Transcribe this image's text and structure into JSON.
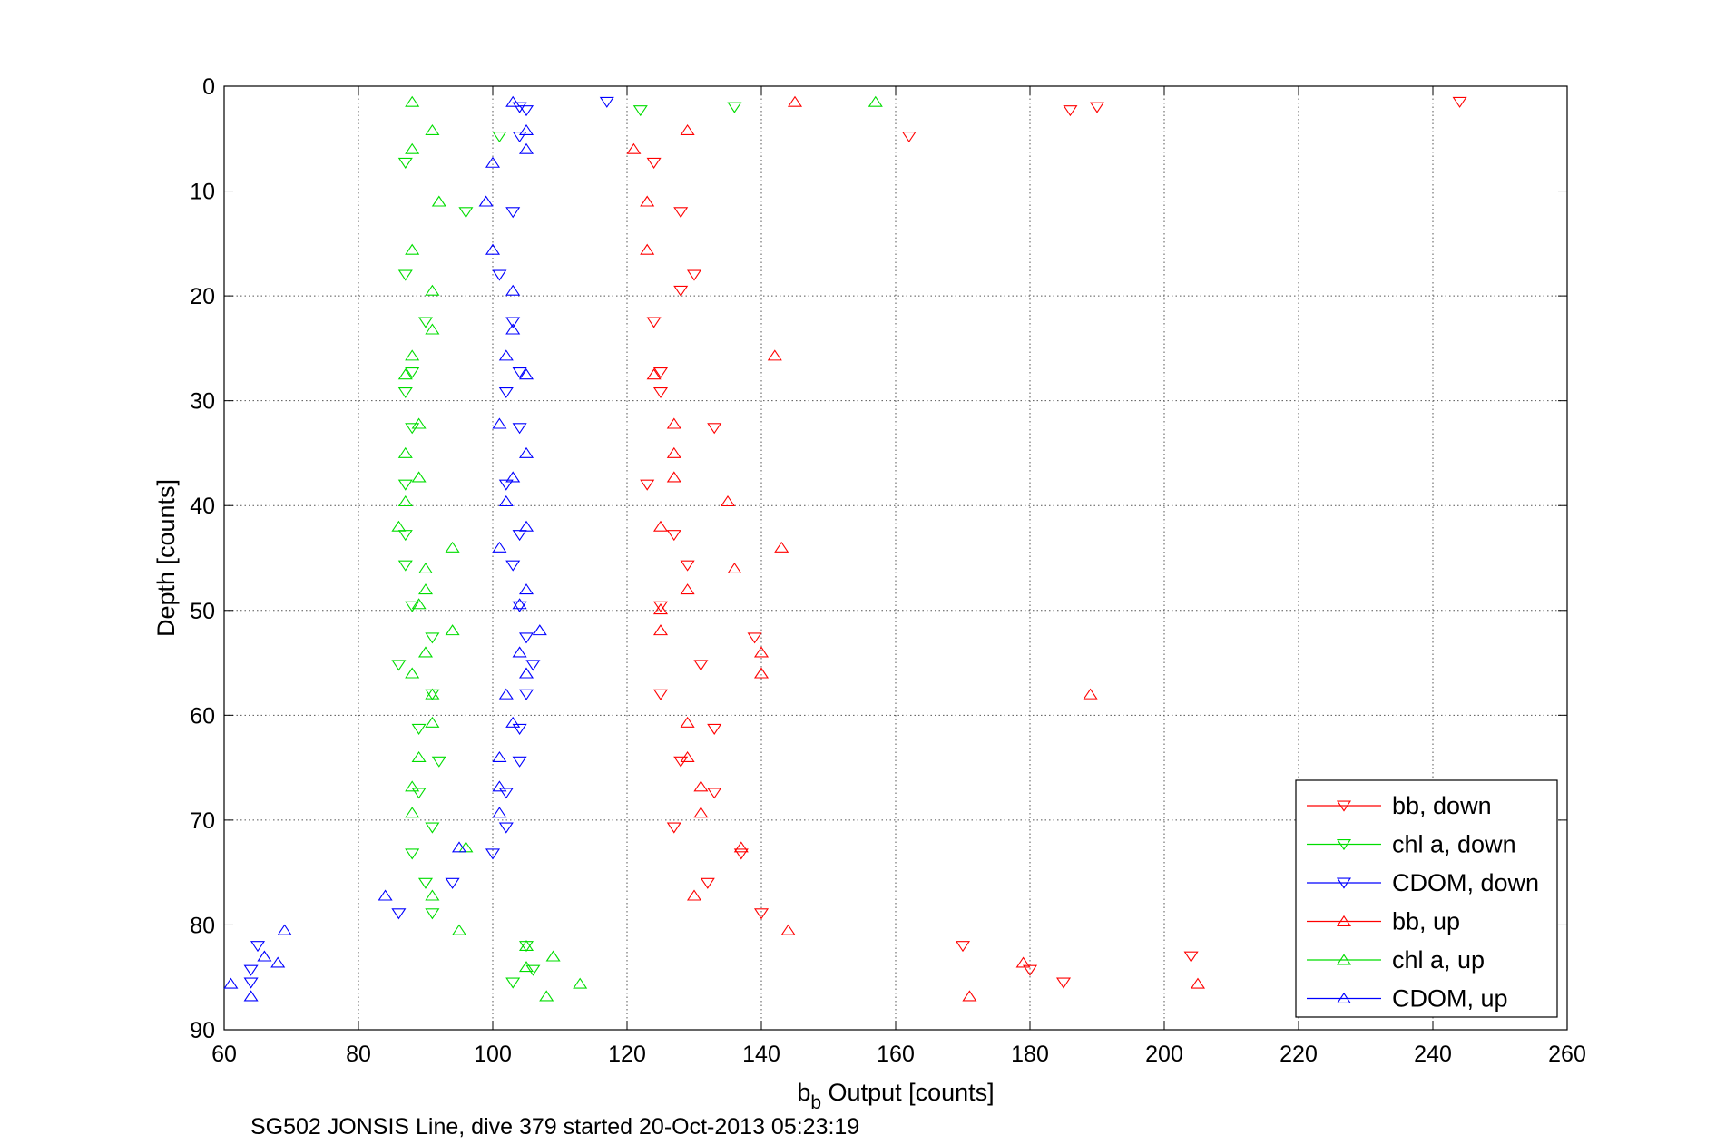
{
  "chart_data": {
    "type": "scatter",
    "xlabel_main": "b",
    "xlabel_sub": "b",
    "xlabel_rest": " Output [counts]",
    "ylabel": "Depth [counts]",
    "caption": "SG502 JONSIS Line, dive 379 started 20-Oct-2013 05:23:19",
    "xlim": [
      60,
      260
    ],
    "ylim": [
      0,
      90
    ],
    "y_reversed": true,
    "x_ticks": [
      60,
      80,
      100,
      120,
      140,
      160,
      180,
      200,
      220,
      240,
      260
    ],
    "y_ticks": [
      0,
      10,
      20,
      30,
      40,
      50,
      60,
      70,
      80,
      90
    ],
    "grid": true,
    "legend_position": "bottom-right",
    "series": [
      {
        "name": "bb, down",
        "color": "#ff0000",
        "marker": "triangle-down",
        "points": [
          [
            244,
            1.5
          ],
          [
            190,
            2
          ],
          [
            186,
            2.3
          ],
          [
            162,
            4.8
          ],
          [
            124,
            7.3
          ],
          [
            128,
            12
          ],
          [
            130,
            18
          ],
          [
            128,
            19.5
          ],
          [
            124,
            22.5
          ],
          [
            125,
            27.3
          ],
          [
            125,
            29.2
          ],
          [
            133,
            32.6
          ],
          [
            123,
            38
          ],
          [
            127,
            42.8
          ],
          [
            129,
            45.7
          ],
          [
            125,
            49.6
          ],
          [
            139,
            52.6
          ],
          [
            131,
            55.2
          ],
          [
            125,
            58
          ],
          [
            133,
            61.3
          ],
          [
            128,
            64.4
          ],
          [
            133,
            67.4
          ],
          [
            127,
            70.7
          ],
          [
            137,
            73.2
          ],
          [
            132,
            76
          ],
          [
            140,
            78.9
          ],
          [
            170,
            82
          ],
          [
            180,
            84.3
          ],
          [
            185,
            85.5
          ],
          [
            204,
            83
          ]
        ]
      },
      {
        "name": "chl a, down",
        "color": "#00dd00",
        "marker": "triangle-down",
        "points": [
          [
            136,
            2
          ],
          [
            122,
            2.3
          ],
          [
            101,
            4.8
          ],
          [
            87,
            7.3
          ],
          [
            96,
            12
          ],
          [
            87,
            18
          ],
          [
            90,
            22.5
          ],
          [
            88,
            27.3
          ],
          [
            87,
            29.2
          ],
          [
            88,
            32.6
          ],
          [
            87,
            38
          ],
          [
            87,
            42.8
          ],
          [
            87,
            45.7
          ],
          [
            88,
            49.6
          ],
          [
            91,
            52.6
          ],
          [
            86,
            55.2
          ],
          [
            91,
            58
          ],
          [
            89,
            61.3
          ],
          [
            92,
            64.4
          ],
          [
            89,
            67.4
          ],
          [
            91,
            70.7
          ],
          [
            88,
            73.2
          ],
          [
            90,
            76
          ],
          [
            91,
            78.9
          ],
          [
            105,
            82
          ],
          [
            106,
            84.3
          ],
          [
            103,
            85.5
          ]
        ]
      },
      {
        "name": "CDOM, down",
        "color": "#0000ff",
        "marker": "triangle-down",
        "points": [
          [
            117,
            1.5
          ],
          [
            104,
            2
          ],
          [
            105,
            2.3
          ],
          [
            104,
            4.8
          ],
          [
            103,
            12
          ],
          [
            101,
            18
          ],
          [
            103,
            22.5
          ],
          [
            104,
            27.3
          ],
          [
            102,
            29.2
          ],
          [
            104,
            32.6
          ],
          [
            102,
            38
          ],
          [
            104,
            42.8
          ],
          [
            103,
            45.7
          ],
          [
            104,
            49.6
          ],
          [
            105,
            52.6
          ],
          [
            106,
            55.2
          ],
          [
            105,
            58
          ],
          [
            104,
            61.3
          ],
          [
            104,
            64.4
          ],
          [
            102,
            67.4
          ],
          [
            102,
            70.7
          ],
          [
            100,
            73.2
          ],
          [
            94,
            76
          ],
          [
            86,
            78.9
          ],
          [
            65,
            82
          ],
          [
            64,
            84.3
          ],
          [
            64,
            85.5
          ]
        ]
      },
      {
        "name": "bb, up",
        "color": "#ff0000",
        "marker": "triangle-up",
        "points": [
          [
            145,
            1.5
          ],
          [
            129,
            4.2
          ],
          [
            121,
            6
          ],
          [
            123,
            11
          ],
          [
            123,
            15.6
          ],
          [
            142,
            25.7
          ],
          [
            124,
            27.5
          ],
          [
            127,
            32.2
          ],
          [
            127,
            35
          ],
          [
            127,
            37.3
          ],
          [
            135,
            39.6
          ],
          [
            125,
            42
          ],
          [
            143,
            44
          ],
          [
            136,
            46
          ],
          [
            129,
            48
          ],
          [
            125,
            49.9
          ],
          [
            125,
            51.9
          ],
          [
            140,
            54
          ],
          [
            140,
            56
          ],
          [
            189,
            58
          ],
          [
            129,
            60.7
          ],
          [
            129,
            64
          ],
          [
            131,
            66.8
          ],
          [
            131,
            69.3
          ],
          [
            137,
            72.6
          ],
          [
            130,
            77.2
          ],
          [
            144,
            80.5
          ],
          [
            179,
            83.6
          ],
          [
            205,
            85.6
          ],
          [
            171,
            86.8
          ]
        ]
      },
      {
        "name": "chl a, up",
        "color": "#00dd00",
        "marker": "triangle-up",
        "points": [
          [
            88,
            1.5
          ],
          [
            157,
            1.5
          ],
          [
            91,
            4.2
          ],
          [
            88,
            6
          ],
          [
            92,
            11
          ],
          [
            88,
            15.6
          ],
          [
            91,
            19.5
          ],
          [
            91,
            23.2
          ],
          [
            88,
            25.7
          ],
          [
            87,
            27.5
          ],
          [
            89,
            32.2
          ],
          [
            87,
            35
          ],
          [
            89,
            37.3
          ],
          [
            87,
            39.6
          ],
          [
            86,
            42
          ],
          [
            94,
            44
          ],
          [
            90,
            46
          ],
          [
            90,
            48
          ],
          [
            89,
            49.4
          ],
          [
            94,
            51.9
          ],
          [
            90,
            54
          ],
          [
            88,
            56
          ],
          [
            91,
            58
          ],
          [
            91,
            60.7
          ],
          [
            89,
            64
          ],
          [
            88,
            66.8
          ],
          [
            88,
            69.3
          ],
          [
            96,
            72.6
          ],
          [
            91,
            77.2
          ],
          [
            95,
            80.5
          ],
          [
            105,
            82
          ],
          [
            109,
            83
          ],
          [
            105,
            84
          ],
          [
            113,
            85.6
          ],
          [
            108,
            86.8
          ]
        ]
      },
      {
        "name": "CDOM, up",
        "color": "#0000ff",
        "marker": "triangle-up",
        "points": [
          [
            103,
            1.5
          ],
          [
            105,
            4.2
          ],
          [
            105,
            6
          ],
          [
            100,
            7.3
          ],
          [
            99,
            11
          ],
          [
            100,
            15.6
          ],
          [
            103,
            19.5
          ],
          [
            103,
            23.2
          ],
          [
            102,
            25.7
          ],
          [
            105,
            27.5
          ],
          [
            101,
            32.2
          ],
          [
            105,
            35
          ],
          [
            103,
            37.3
          ],
          [
            102,
            39.6
          ],
          [
            105,
            42
          ],
          [
            101,
            44
          ],
          [
            105,
            48
          ],
          [
            104,
            49.4
          ],
          [
            107,
            51.9
          ],
          [
            104,
            54
          ],
          [
            105,
            56
          ],
          [
            102,
            58
          ],
          [
            103,
            60.7
          ],
          [
            101,
            64
          ],
          [
            101,
            66.8
          ],
          [
            101,
            69.3
          ],
          [
            95,
            72.6
          ],
          [
            84,
            77.2
          ],
          [
            69,
            80.5
          ],
          [
            68,
            83.6
          ],
          [
            66,
            83
          ],
          [
            61,
            85.6
          ],
          [
            64,
            86.8
          ]
        ]
      }
    ]
  }
}
